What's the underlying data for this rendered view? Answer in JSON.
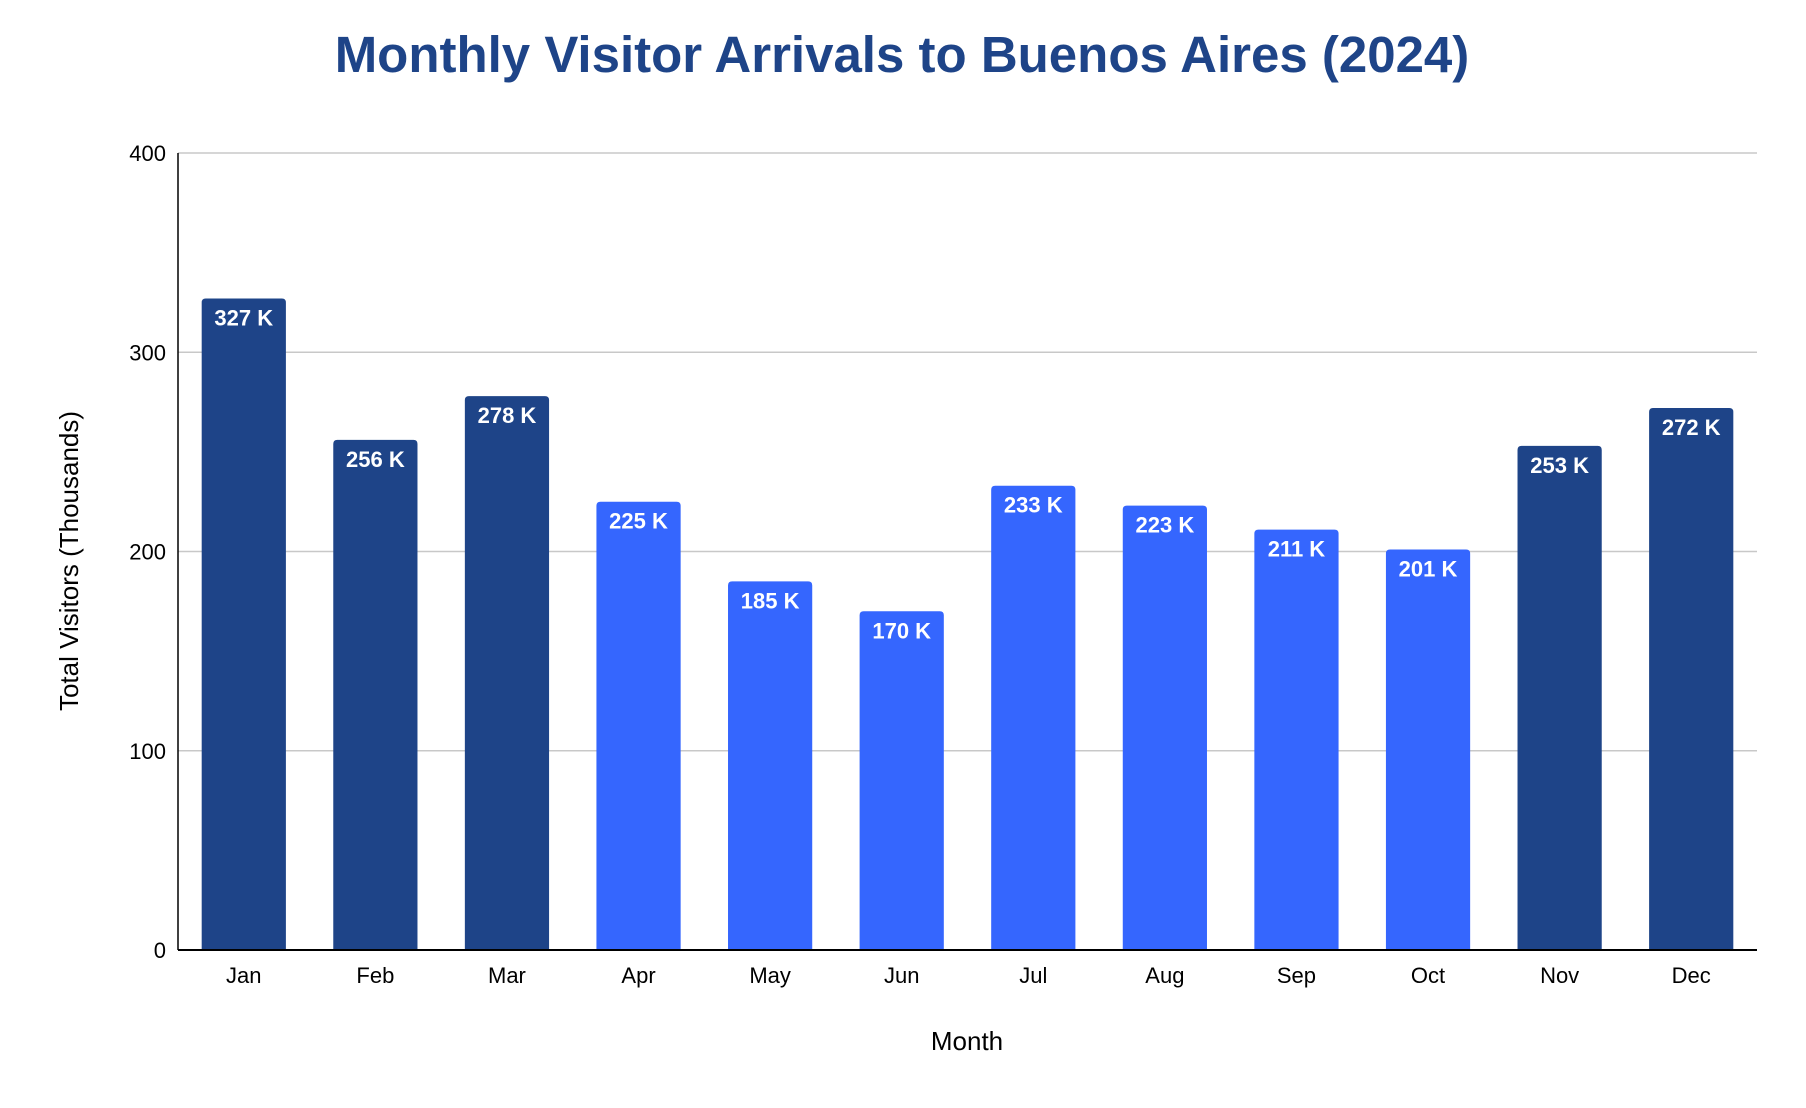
{
  "chart_data": {
    "type": "bar",
    "title": "Monthly Visitor Arrivals to Buenos Aires (2024)",
    "xlabel": "Month",
    "ylabel": "Total Visitors (Thousands)",
    "ylim": [
      0,
      400
    ],
    "yticks": [
      0,
      100,
      200,
      300,
      400
    ],
    "grid": true,
    "legend": "none",
    "categories": [
      "Jan",
      "Feb",
      "Mar",
      "Apr",
      "May",
      "Jun",
      "Jul",
      "Aug",
      "Sep",
      "Oct",
      "Nov",
      "Dec"
    ],
    "values": [
      327,
      256,
      278,
      225,
      185,
      170,
      233,
      223,
      211,
      201,
      253,
      272
    ],
    "data_labels": [
      "327 K",
      "256 K",
      "278 K",
      "225 K",
      "185 K",
      "170 K",
      "233 K",
      "223 K",
      "211 K",
      "201 K",
      "253 K",
      "272 K"
    ],
    "bar_colors": [
      "#1e4488",
      "#1e4488",
      "#1e4488",
      "#3566fe",
      "#3566fe",
      "#3566fe",
      "#3566fe",
      "#3566fe",
      "#3566fe",
      "#3566fe",
      "#1e4488",
      "#1e4488"
    ],
    "colors": {
      "title": "#1e4488",
      "peak_season": "#1e4488",
      "off_season": "#3566fe",
      "gridline": "#c8c8c8",
      "axis": "#000000"
    }
  }
}
